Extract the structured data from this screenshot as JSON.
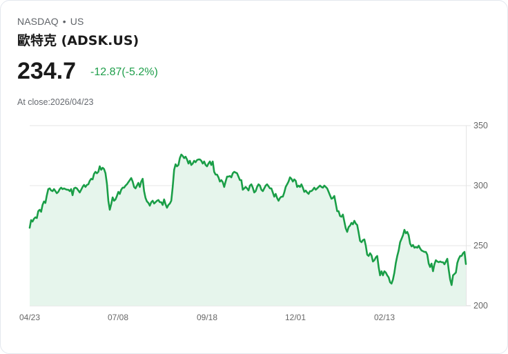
{
  "header": {
    "exchange": "NASDAQ",
    "separator": "•",
    "market": "US",
    "title": "歐特克 (ADSK.US)",
    "price": "234.7",
    "change": "-12.87(-5.2%)",
    "close_label": "At close:2026/04/23"
  },
  "colors": {
    "line": "#1a9e47",
    "fill": "#e6f5ec",
    "change": "#1e9e4a",
    "grid": "#e2e2e2"
  },
  "axis": {
    "x_ticks": [
      "04/23",
      "07/08",
      "09/18",
      "12/01",
      "02/13"
    ],
    "y_ticks": [
      "350",
      "300",
      "250",
      "200"
    ]
  },
  "chart_data": {
    "type": "area",
    "title": "歐特克 (ADSK.US)",
    "xlabel": "",
    "ylabel": "",
    "ylim": [
      200,
      350
    ],
    "grid": true,
    "legend": null,
    "x_tick_labels": [
      "04/23",
      "07/08",
      "09/18",
      "12/01",
      "02/13"
    ],
    "y_tick_labels": [
      200,
      250,
      300,
      350
    ],
    "series": [
      {
        "name": "ADSK.US",
        "values": [
          264.9,
          271.3,
          270.1,
          272.4,
          273.6,
          273.0,
          278.7,
          279.9,
          278.2,
          284.0,
          286.8,
          285.6,
          292.0,
          297.1,
          297.7,
          296.0,
          295.4,
          297.1,
          295.4,
          293.7,
          294.8,
          297.1,
          298.3,
          297.1,
          297.7,
          297.1,
          296.6,
          296.6,
          295.4,
          297.1,
          292.0,
          297.7,
          298.3,
          297.7,
          296.0,
          294.3,
          296.6,
          298.9,
          300.6,
          298.9,
          300.6,
          301.1,
          304.0,
          305.7,
          305.2,
          309.8,
          311.5,
          310.3,
          311.5,
          316.1,
          313.2,
          314.9,
          313.8,
          310.3,
          301.7,
          287.4,
          279.9,
          284.5,
          290.2,
          287.4,
          288.5,
          291.4,
          294.8,
          293.1,
          296.6,
          298.3,
          298.3,
          300.0,
          301.1,
          302.9,
          304.6,
          306.3,
          303.4,
          298.9,
          297.7,
          300.0,
          302.3,
          298.9,
          303.4,
          305.7,
          295.4,
          289.7,
          286.8,
          285.6,
          283.3,
          286.2,
          287.4,
          285.1,
          286.2,
          287.4,
          288.0,
          286.2,
          286.2,
          283.9,
          288.5,
          284.5,
          281.6,
          283.9,
          285.1,
          287.4,
          298.9,
          313.2,
          317.8,
          316.1,
          317.2,
          322.9,
          325.9,
          324.7,
          322.9,
          324.1,
          321.8,
          318.4,
          320.7,
          317.2,
          318.4,
          320.7,
          319.5,
          321.3,
          321.8,
          321.8,
          320.7,
          318.4,
          320.1,
          317.2,
          316.1,
          318.4,
          320.1,
          317.2,
          320.1,
          311.5,
          309.2,
          309.2,
          306.9,
          303.4,
          304.6,
          302.9,
          298.9,
          303.4,
          307.5,
          307.5,
          308.0,
          306.9,
          310.3,
          311.5,
          310.9,
          310.3,
          307.5,
          304.6,
          304.6,
          296.6,
          297.7,
          298.9,
          297.7,
          296.0,
          300.0,
          301.1,
          298.3,
          294.3,
          295.4,
          298.9,
          301.1,
          300.0,
          296.6,
          295.4,
          297.7,
          300.0,
          301.1,
          299.4,
          297.7,
          297.7,
          294.3,
          290.8,
          293.1,
          289.7,
          287.4,
          289.7,
          290.8,
          290.8,
          294.3,
          298.9,
          301.1,
          303.4,
          306.9,
          305.7,
          303.4,
          305.2,
          304.0,
          298.9,
          300.0,
          298.9,
          301.1,
          298.3,
          294.8,
          295.9,
          294.3,
          293.1,
          295.4,
          295.4,
          296.6,
          298.3,
          296.6,
          297.7,
          298.9,
          300.0,
          298.9,
          298.3,
          300.0,
          298.9,
          297.7,
          294.8,
          291.9,
          289.1,
          289.7,
          291.4,
          285.1,
          278.7,
          278.7,
          274.7,
          274.1,
          275.9,
          270.1,
          264.4,
          261.5,
          265.5,
          266.7,
          269.0,
          267.8,
          270.7,
          268.4,
          267.2,
          260.9,
          254.0,
          252.9,
          254.6,
          255.2,
          250.0,
          242.5,
          241.4,
          243.7,
          241.9,
          236.8,
          237.9,
          240.2,
          241.4,
          232.2,
          225.3,
          228.7,
          225.3,
          228.7,
          227.6,
          225.3,
          223.6,
          219.5,
          218.4,
          221.8,
          227.6,
          235.6,
          241.4,
          246.0,
          252.9,
          255.7,
          258.6,
          263.2,
          260.3,
          261.5,
          258.6,
          251.7,
          249.4,
          250.6,
          248.3,
          248.9,
          248.3,
          250.0,
          247.7,
          246.0,
          245.4,
          244.8,
          244.8,
          242.5,
          235.1,
          232.2,
          235.1,
          228.7,
          234.5,
          237.9,
          236.8,
          236.2,
          236.8,
          236.2,
          236.2,
          234.5,
          236.8,
          239.1,
          229.9,
          221.8,
          217.2,
          225.3,
          226.4,
          227.6,
          235.6,
          239.1,
          241.4,
          241.4,
          243.7,
          244.8,
          234.7
        ]
      }
    ]
  }
}
